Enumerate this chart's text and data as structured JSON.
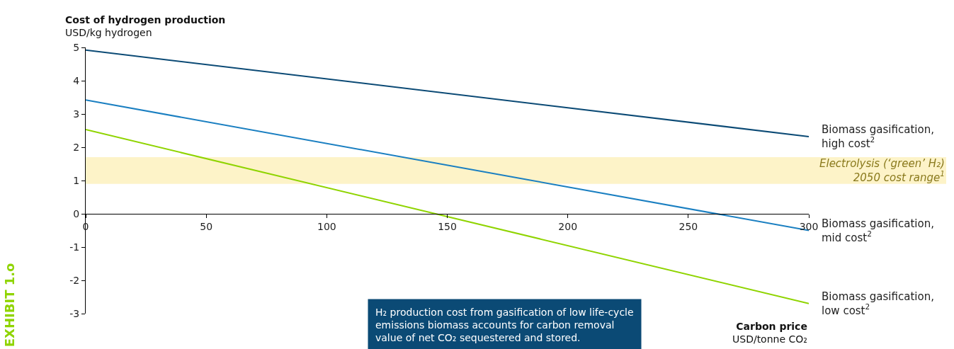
{
  "chart_data": {
    "type": "line",
    "ylabel": "Cost of hydrogen production\nUSD/kg hydrogen",
    "xlabel": "Carbon price\nUSD/tonne CO₂",
    "x": [
      0,
      300
    ],
    "xlim": [
      0,
      300
    ],
    "xticks": [
      0,
      50,
      100,
      150,
      200,
      250,
      300
    ],
    "ylim": [
      -3,
      5
    ],
    "yticks": [
      -3,
      -2,
      -1,
      0,
      1,
      2,
      3,
      4,
      5
    ],
    "series": [
      {
        "name": "Biomass gasification,\nhigh cost$^{2}$",
        "color": "#0b4a75",
        "values": [
          4.92,
          2.32
        ]
      },
      {
        "name": "Biomass gasification,\nmid cost$^{2}$",
        "color": "#1a7fc1",
        "values": [
          3.42,
          -0.5
        ]
      },
      {
        "name": "Biomass gasification,\nlow cost$^{2}$",
        "color": "#8fd400",
        "values": [
          2.53,
          -2.7
        ]
      }
    ],
    "bands": [
      {
        "axis": "y",
        "from": 0.9,
        "to": 1.7,
        "label": "Electrolysis (‘green’ H₂)\n2050 cost range$^{1}$",
        "color": "#fdf3c8"
      }
    ],
    "annotations": [
      "H₂ production cost from gasification of low life-cycle\nemissions biomass accounts for carbon removal\nvalue of net CO₂ sequestered and stored.",
      "EXHIBIT 1.o"
    ],
    "legend": false,
    "grid": false,
    "marker": "none",
    "line_style": "solid"
  }
}
